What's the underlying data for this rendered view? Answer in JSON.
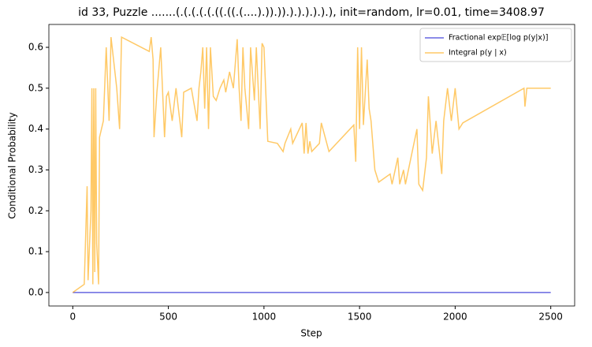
{
  "chart_data": {
    "type": "line",
    "title": "id 33, Puzzle .......(.(.(.(.(.((.((.(....).)).)).).).).).).), init=random, lr=0.01, time=3408.97",
    "x_label": "Step",
    "y_label": "Conditional Probability",
    "xlim": [
      -125,
      2625
    ],
    "ylim": [
      -0.033,
      0.656
    ],
    "xticks": [
      0,
      500,
      1000,
      1500,
      2000,
      2500
    ],
    "yticks": [
      {
        "value": 0,
        "label": "0.0"
      },
      0.1,
      0.2,
      0.3,
      0.4,
      0.5,
      0.6
    ],
    "legend": "upper right",
    "series": [
      {
        "name": "Fractional exp𝔼[log p(y|x)]",
        "color": "#0000cc",
        "x": [
          0,
          2500
        ],
        "values": [
          0,
          0
        ]
      },
      {
        "name": "Integral p(y | x)",
        "color": "#ffa500",
        "x": [
          0,
          60,
          75,
          80,
          95,
          100,
          105,
          110,
          115,
          120,
          125,
          135,
          140,
          160,
          175,
          190,
          200,
          230,
          245,
          255,
          400,
          410,
          420,
          425,
          440,
          460,
          470,
          480,
          490,
          500,
          520,
          540,
          570,
          580,
          620,
          650,
          660,
          670,
          680,
          690,
          700,
          710,
          720,
          735,
          750,
          770,
          790,
          800,
          820,
          840,
          860,
          870,
          880,
          890,
          900,
          920,
          930,
          950,
          960,
          980,
          990,
          1000,
          1020,
          1070,
          1100,
          1110,
          1140,
          1150,
          1200,
          1210,
          1220,
          1230,
          1240,
          1250,
          1290,
          1300,
          1340,
          1470,
          1480,
          1490,
          1500,
          1510,
          1520,
          1540,
          1550,
          1560,
          1580,
          1600,
          1660,
          1670,
          1700,
          1710,
          1730,
          1740,
          1800,
          1810,
          1830,
          1850,
          1860,
          1880,
          1900,
          1930,
          1940,
          1960,
          1980,
          2000,
          2020,
          2040,
          2360,
          2365,
          2375,
          2500
        ],
        "values": [
          0,
          0.02,
          0.26,
          0.03,
          0.2,
          0.5,
          0.02,
          0.5,
          0.05,
          0.5,
          0.12,
          0.02,
          0.38,
          0.42,
          0.6,
          0.42,
          0.625,
          0.5,
          0.4,
          0.625,
          0.59,
          0.625,
          0.57,
          0.38,
          0.49,
          0.6,
          0.49,
          0.38,
          0.48,
          0.49,
          0.42,
          0.5,
          0.38,
          0.49,
          0.5,
          0.42,
          0.5,
          0.54,
          0.6,
          0.45,
          0.6,
          0.4,
          0.6,
          0.48,
          0.47,
          0.5,
          0.52,
          0.49,
          0.54,
          0.5,
          0.62,
          0.5,
          0.42,
          0.6,
          0.5,
          0.4,
          0.6,
          0.47,
          0.6,
          0.4,
          0.61,
          0.6,
          0.37,
          0.365,
          0.345,
          0.365,
          0.4,
          0.365,
          0.415,
          0.34,
          0.415,
          0.34,
          0.37,
          0.345,
          0.365,
          0.415,
          0.345,
          0.41,
          0.32,
          0.6,
          0.4,
          0.6,
          0.41,
          0.57,
          0.45,
          0.42,
          0.3,
          0.27,
          0.29,
          0.265,
          0.33,
          0.265,
          0.3,
          0.265,
          0.4,
          0.265,
          0.25,
          0.33,
          0.48,
          0.34,
          0.42,
          0.29,
          0.42,
          0.5,
          0.42,
          0.5,
          0.4,
          0.415,
          0.5,
          0.455,
          0.5,
          0.5
        ]
      }
    ]
  }
}
